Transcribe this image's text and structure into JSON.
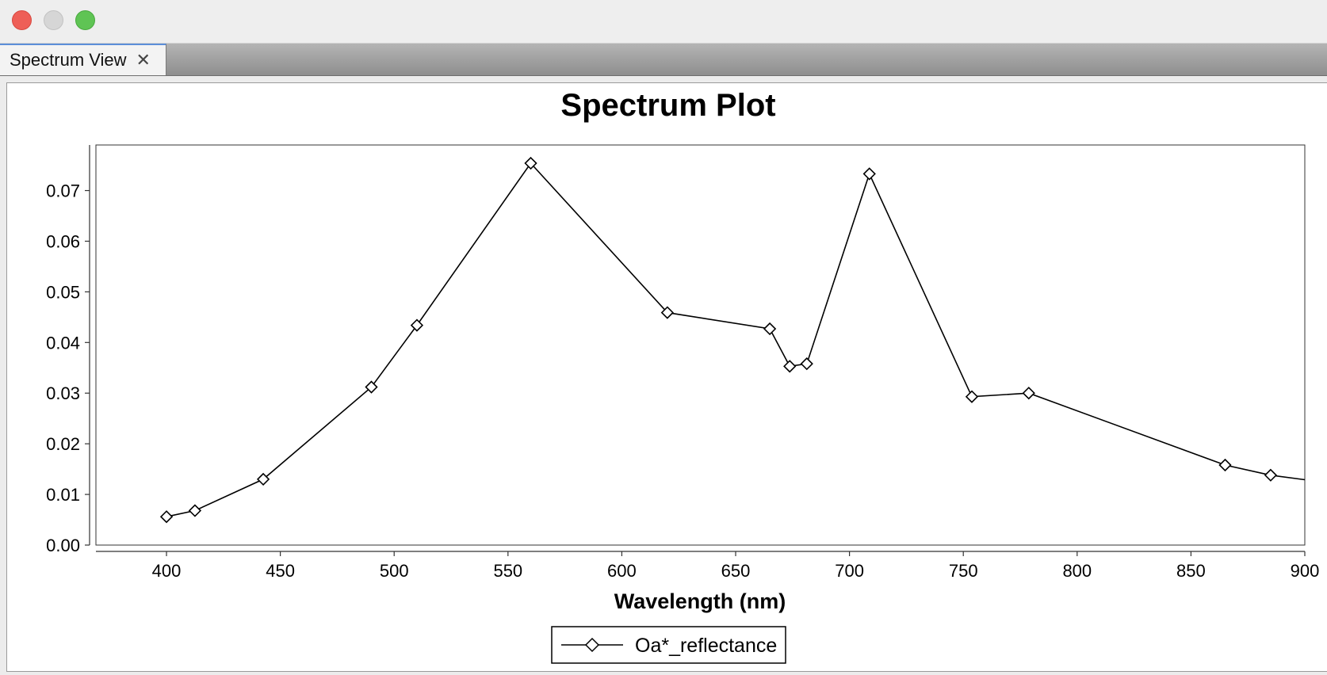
{
  "window": {
    "tab_label": "Spectrum View",
    "tab_close_glyph": "✕"
  },
  "chart_data": {
    "type": "line",
    "title": "Spectrum Plot",
    "xlabel": "Wavelength (nm)",
    "ylabel": "",
    "xlim": [
      369,
      900
    ],
    "ylim": [
      0.0,
      0.079
    ],
    "x_ticks": [
      400,
      450,
      500,
      550,
      600,
      650,
      700,
      750,
      800,
      850,
      900
    ],
    "y_ticks": [
      0.0,
      0.01,
      0.02,
      0.03,
      0.04,
      0.05,
      0.06,
      0.07
    ],
    "y_tick_labels": [
      "0.00",
      "0.01",
      "0.02",
      "0.03",
      "0.04",
      "0.05",
      "0.06",
      "0.07"
    ],
    "grid": false,
    "legend_position": "bottom-center",
    "series": [
      {
        "name": "Oa*_reflectance",
        "color": "#000000",
        "marker": "diamond",
        "x": [
          400,
          412.5,
          442.5,
          490,
          510,
          560,
          620,
          665,
          673.75,
          681.25,
          708.75,
          753.75,
          778.75,
          865,
          885,
          900
        ],
        "y": [
          0.0056,
          0.0068,
          0.013,
          0.0312,
          0.0434,
          0.0754,
          0.0459,
          0.0427,
          0.0353,
          0.0358,
          0.0733,
          0.0293,
          0.03,
          0.0158,
          0.0138,
          0.0129
        ],
        "marker_points": 15
      }
    ]
  }
}
